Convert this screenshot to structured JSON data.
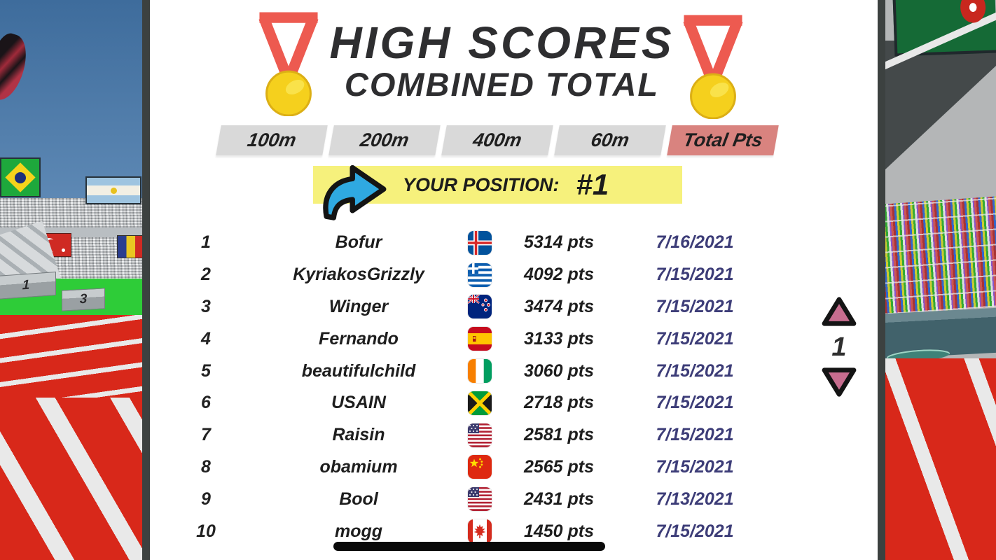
{
  "header": {
    "title_line1": "HIGH SCORES",
    "title_line2": "COMBINED TOTAL",
    "medal_icon": "gold-medal-red-ribbon"
  },
  "tabs": [
    {
      "label": "100m",
      "active": false
    },
    {
      "label": "200m",
      "active": false
    },
    {
      "label": "400m",
      "active": false
    },
    {
      "label": "60m",
      "active": false
    },
    {
      "label": "Total Pts",
      "active": true
    }
  ],
  "position_banner": {
    "label": "YOUR POSITION:",
    "value": "#1",
    "arrow_icon": "curved-right-arrow",
    "background_color": "#f6f17c",
    "arrow_color": "#2fa9e1"
  },
  "leaderboard": {
    "rows": [
      {
        "rank": "1",
        "name": "Bofur",
        "flag": "iceland",
        "points": "5314 pts",
        "date": "7/16/2021"
      },
      {
        "rank": "2",
        "name": "KyriakosGrizzly",
        "flag": "greece",
        "points": "4092 pts",
        "date": "7/15/2021"
      },
      {
        "rank": "3",
        "name": "Winger",
        "flag": "new-zealand",
        "points": "3474 pts",
        "date": "7/15/2021"
      },
      {
        "rank": "4",
        "name": "Fernando",
        "flag": "spain",
        "points": "3133 pts",
        "date": "7/15/2021"
      },
      {
        "rank": "5",
        "name": "beautifulchild",
        "flag": "ivory-coast",
        "points": "3060 pts",
        "date": "7/15/2021"
      },
      {
        "rank": "6",
        "name": "USAIN",
        "flag": "jamaica",
        "points": "2718 pts",
        "date": "7/15/2021"
      },
      {
        "rank": "7",
        "name": "Raisin",
        "flag": "usa",
        "points": "2581 pts",
        "date": "7/15/2021"
      },
      {
        "rank": "8",
        "name": "obamium",
        "flag": "china",
        "points": "2565 pts",
        "date": "7/15/2021"
      },
      {
        "rank": "9",
        "name": "Bool",
        "flag": "usa",
        "points": "2431 pts",
        "date": "7/13/2021"
      },
      {
        "rank": "10",
        "name": "mogg",
        "flag": "canada",
        "points": "1450 pts",
        "date": "7/15/2021"
      }
    ],
    "date_color": "#3d3d78"
  },
  "pager": {
    "page": "1",
    "up_icon": "triangle-up",
    "down_icon": "triangle-down",
    "triangle_color": "#c76d8f"
  },
  "background": {
    "podium_labels": [
      "1",
      "3"
    ],
    "scene": "athletics stadium with red track, crowd and national flags"
  },
  "colors": {
    "tab_inactive": "#d9d9d9",
    "tab_active": "#d9837f",
    "panel": "#ffffff",
    "track_red": "#d8281a",
    "medal_ribbon": "#ed5a50",
    "medal_gold": "#f5d01d"
  }
}
